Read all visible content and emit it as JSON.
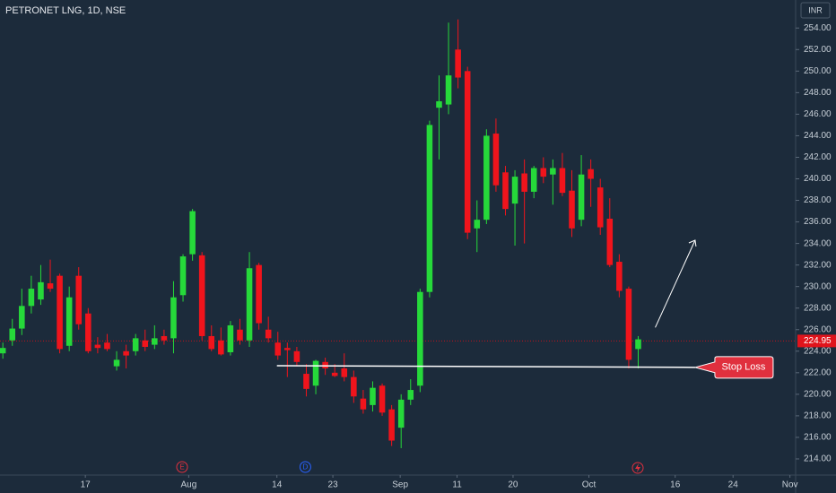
{
  "chart_data": {
    "type": "candlestick",
    "title": "PETRONET LNG, 1D, NSE",
    "currency": "INR",
    "last_price": 224.95,
    "last_price_label": "224.95",
    "up_color": "#26d93a",
    "down_color": "#f0141c",
    "open": [
      223.8,
      225.0,
      226.1,
      228.2,
      228.8,
      230.3,
      231.0,
      224.5,
      231.0,
      227.5,
      224.6,
      224.8,
      222.6,
      224.0,
      224.0,
      225.0,
      224.6,
      225.4,
      225.2,
      229.2,
      233.0,
      232.9,
      225.4,
      225.0,
      223.9,
      226.0,
      225.0,
      232.0,
      226.0,
      224.8,
      224.3,
      224.0,
      221.9,
      220.8,
      223.0,
      222.0,
      222.4,
      221.6,
      219.6,
      219.0,
      220.8,
      218.6,
      216.9,
      219.5,
      220.8,
      229.5,
      246.6,
      246.9,
      252.0,
      250.0,
      235.4,
      236.2,
      244.2,
      240.6,
      237.7,
      240.5,
      238.8,
      241.0,
      240.4,
      241.0,
      238.9,
      236.2,
      240.9,
      239.2,
      236.3,
      232.3,
      229.8,
      224.2
    ],
    "high": [
      224.8,
      227.0,
      229.8,
      231.0,
      232.0,
      232.5,
      231.2,
      230.0,
      231.8,
      228.0,
      225.3,
      225.6,
      224.0,
      224.6,
      225.6,
      226.0,
      226.4,
      226.0,
      230.5,
      233.0,
      237.2,
      233.2,
      226.4,
      226.2,
      226.8,
      227.0,
      233.2,
      232.2,
      227.2,
      225.8,
      224.8,
      224.4,
      222.8,
      223.2,
      223.4,
      222.8,
      223.8,
      222.2,
      220.4,
      221.2,
      221.0,
      219.0,
      220.0,
      221.4,
      229.8,
      245.4,
      249.6,
      254.5,
      254.8,
      250.4,
      238.0,
      244.6,
      245.6,
      241.2,
      240.8,
      241.8,
      241.2,
      242.0,
      241.8,
      242.4,
      240.8,
      242.2,
      241.8,
      240.0,
      238.2,
      233.0,
      230.0,
      225.4
    ],
    "low": [
      223.3,
      224.5,
      225.5,
      227.5,
      228.3,
      229.5,
      223.8,
      224.0,
      226.0,
      223.8,
      223.8,
      224.0,
      222.2,
      222.4,
      223.6,
      224.0,
      224.2,
      224.6,
      223.8,
      228.6,
      232.4,
      225.0,
      224.0,
      223.6,
      223.6,
      224.6,
      224.4,
      226.0,
      224.8,
      223.2,
      221.6,
      222.6,
      219.8,
      220.0,
      221.8,
      221.6,
      221.2,
      219.2,
      218.2,
      218.4,
      218.0,
      215.2,
      215.0,
      219.0,
      220.2,
      229.0,
      241.8,
      246.0,
      248.4,
      234.4,
      233.2,
      235.8,
      238.8,
      236.6,
      233.8,
      234.0,
      238.2,
      239.6,
      237.6,
      238.4,
      234.6,
      235.6,
      237.4,
      234.8,
      231.8,
      229.0,
      222.4,
      222.4
    ],
    "close": [
      224.3,
      226.1,
      228.2,
      229.8,
      230.4,
      229.8,
      224.2,
      229.0,
      226.5,
      224.0,
      224.3,
      224.2,
      223.2,
      223.6,
      225.2,
      224.4,
      225.2,
      225.0,
      229.0,
      232.8,
      237.0,
      225.4,
      224.2,
      223.7,
      226.4,
      225.0,
      231.7,
      226.6,
      225.2,
      223.6,
      224.1,
      223.0,
      220.5,
      223.1,
      222.4,
      221.7,
      221.6,
      219.8,
      218.6,
      220.6,
      218.3,
      215.7,
      219.5,
      220.4,
      229.5,
      245.0,
      247.2,
      249.6,
      249.4,
      235.0,
      236.2,
      244.0,
      239.4,
      237.2,
      240.2,
      238.8,
      241.0,
      240.2,
      241.0,
      238.7,
      235.4,
      240.4,
      240.0,
      235.5,
      232.0,
      229.6,
      223.2,
      225.1
    ],
    "xlim": [
      -0.3,
      83.6
    ],
    "xticks": [
      {
        "value": 8.7,
        "label": "17"
      },
      {
        "value": 19.6,
        "label": "Aug"
      },
      {
        "value": 28.9,
        "label": "14"
      },
      {
        "value": 34.8,
        "label": "23"
      },
      {
        "value": 41.9,
        "label": "Sep"
      },
      {
        "value": 47.9,
        "label": "11"
      },
      {
        "value": 53.8,
        "label": "20"
      },
      {
        "value": 61.8,
        "label": "Oct"
      },
      {
        "value": 70.9,
        "label": "16"
      },
      {
        "value": 77.0,
        "label": "24"
      },
      {
        "value": 83.0,
        "label": "Nov"
      }
    ],
    "ylim": [
      212.5,
      256.6
    ],
    "yticks": [
      {
        "value": 214,
        "label": "214.00"
      },
      {
        "value": 216,
        "label": "216.00"
      },
      {
        "value": 218,
        "label": "218.00"
      },
      {
        "value": 220,
        "label": "220.00"
      },
      {
        "value": 222,
        "label": "222.00"
      },
      {
        "value": 224,
        "label": "224.00"
      },
      {
        "value": 226,
        "label": "226.00"
      },
      {
        "value": 228,
        "label": "228.00"
      },
      {
        "value": 230,
        "label": "230.00"
      },
      {
        "value": 232,
        "label": "232.00"
      },
      {
        "value": 234,
        "label": "234.00"
      },
      {
        "value": 236,
        "label": "236.00"
      },
      {
        "value": 238,
        "label": "238.00"
      },
      {
        "value": 240,
        "label": "240.00"
      },
      {
        "value": 242,
        "label": "242.00"
      },
      {
        "value": 244,
        "label": "244.00"
      },
      {
        "value": 246,
        "label": "246.00"
      },
      {
        "value": 248,
        "label": "248.00"
      },
      {
        "value": 250,
        "label": "250.00"
      },
      {
        "value": 252,
        "label": "252.00"
      },
      {
        "value": 254,
        "label": "254.00"
      }
    ],
    "support_line": {
      "x": [
        28.9,
        73.0
      ],
      "y": [
        222.65,
        222.5
      ]
    },
    "arrow": {
      "x": [
        68.8,
        73.0
      ],
      "y": [
        226.2,
        234.3
      ]
    },
    "annotation": {
      "text": "Stop Loss",
      "x": 73.0,
      "y": 222.5
    },
    "events": [
      {
        "label": "E",
        "x": 18.9
      },
      {
        "label": "D",
        "x": 31.9
      }
    ]
  }
}
